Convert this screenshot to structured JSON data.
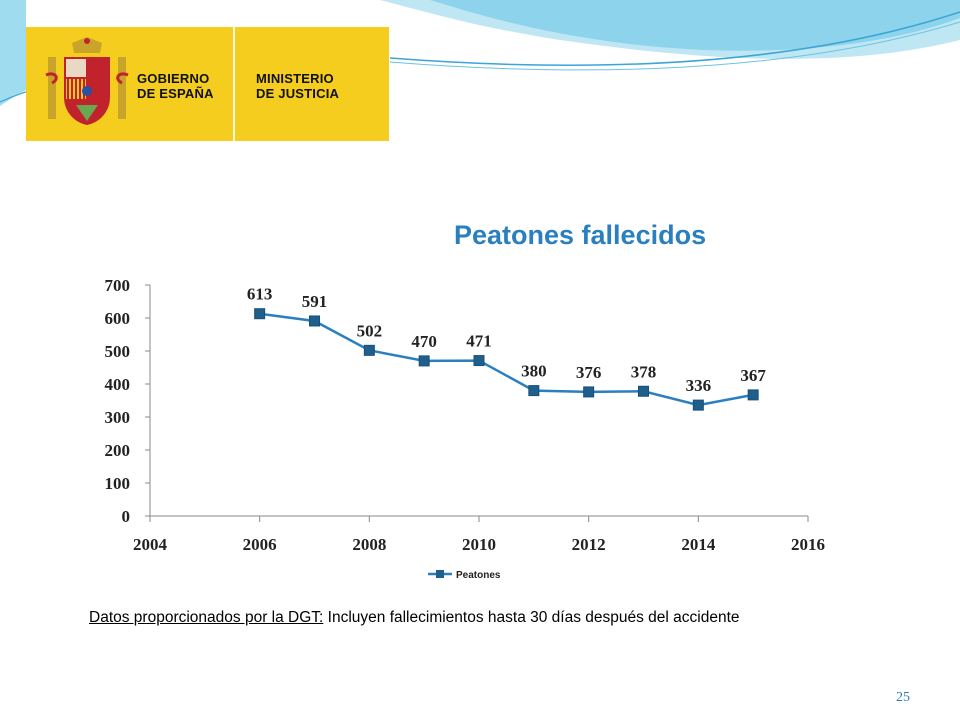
{
  "logo": {
    "line1a": "GOBIERNO",
    "line1b": "DE ESPAÑA",
    "line2a": "MINISTERIO",
    "line2b": "DE JUSTICIA",
    "bg_color": "#f4cd1e"
  },
  "chart_data": {
    "type": "line",
    "title": "Peatones fallecidos",
    "x": [
      2006,
      2007,
      2008,
      2009,
      2010,
      2011,
      2012,
      2013,
      2014,
      2015
    ],
    "series": [
      {
        "name": "Peatones",
        "values": [
          613,
          591,
          502,
          470,
          471,
          380,
          376,
          378,
          336,
          367
        ],
        "color": "#2a7fc1"
      }
    ],
    "xlim": [
      2004,
      2016
    ],
    "ylim": [
      0,
      700
    ],
    "xticks": [
      "2004",
      "2006",
      "2008",
      "2010",
      "2012",
      "2014",
      "2016"
    ],
    "yticks": [
      "0",
      "100",
      "200",
      "300",
      "400",
      "500",
      "600",
      "700"
    ],
    "grid": false,
    "legend": "bottom"
  },
  "footnote": {
    "underlined": "Datos proporcionados por la DGT:",
    "rest": " Incluyen fallecimientos hasta 30 días después del accidente"
  },
  "slide_number": "25"
}
